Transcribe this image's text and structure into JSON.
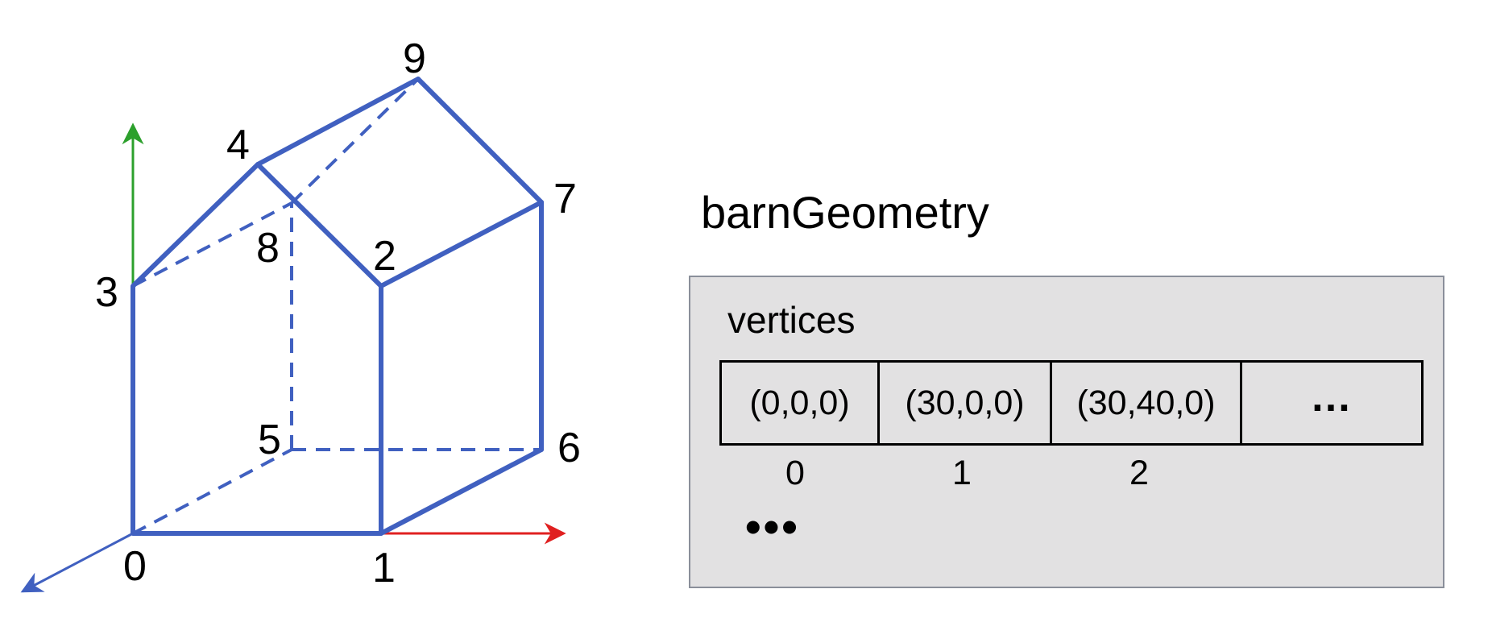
{
  "diagram": {
    "vertex_labels": [
      "0",
      "1",
      "2",
      "3",
      "4",
      "5",
      "6",
      "7",
      "8",
      "9"
    ],
    "colors": {
      "edges": "#4060c0",
      "x_axis": "#e02020",
      "y_axis": "#2ca02c",
      "z_axis": "#4060c0"
    }
  },
  "geometry": {
    "title": "barnGeometry",
    "field": "vertices",
    "cells": [
      "(0,0,0)",
      "(30,0,0)",
      "(30,40,0)",
      "…"
    ],
    "indices": [
      "0",
      "1",
      "2"
    ],
    "more": "•••"
  }
}
